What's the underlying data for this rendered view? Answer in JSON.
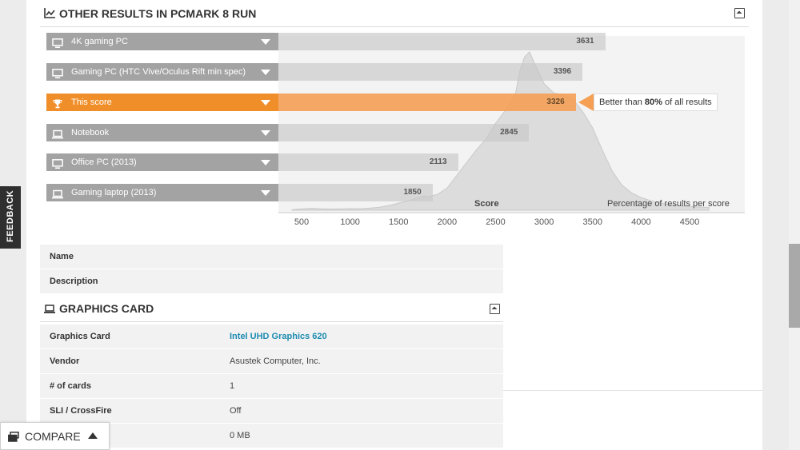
{
  "results_section": {
    "title": "OTHER RESULTS IN PCMARK 8 RUN",
    "rows": [
      {
        "label": "4K gaming PC",
        "score": "3631",
        "score_value": 3631,
        "icon": "desktop-icon",
        "highlight": false
      },
      {
        "label": "Gaming PC (HTC Vive/Oculus Rift min spec)",
        "score": "3396",
        "score_value": 3396,
        "icon": "desktop-icon",
        "highlight": false
      },
      {
        "label": "This score",
        "score": "3326",
        "score_value": 3326,
        "icon": "trophy-icon",
        "highlight": true
      },
      {
        "label": "Notebook",
        "score": "2845",
        "score_value": 2845,
        "icon": "laptop-icon",
        "highlight": false
      },
      {
        "label": "Office PC (2013)",
        "score": "2113",
        "score_value": 2113,
        "icon": "desktop-icon",
        "highlight": false
      },
      {
        "label": "Gaming laptop (2013)",
        "score": "1850",
        "score_value": 1850,
        "icon": "laptop-icon",
        "highlight": false
      }
    ],
    "callout": {
      "prefix": "Better than ",
      "percent": "80%",
      "suffix": " of all results"
    },
    "axis_title": "Score",
    "axis_note": "Percentage of results per score",
    "ticks": [
      "500",
      "1000",
      "1500",
      "2000",
      "2500",
      "3000",
      "3500",
      "4000",
      "4500"
    ]
  },
  "chart_data": {
    "type": "area",
    "title": "",
    "xlabel": "Score",
    "ylabel": "Percentage of results per score",
    "xlim": [
      400,
      4700
    ],
    "x": [
      400,
      500,
      600,
      700,
      800,
      900,
      1000,
      1100,
      1200,
      1300,
      1400,
      1500,
      1600,
      1700,
      1750,
      1800,
      1900,
      2000,
      2100,
      2200,
      2300,
      2400,
      2500,
      2600,
      2700,
      2750,
      2800,
      2850,
      2900,
      3000,
      3100,
      3200,
      3300,
      3400,
      3500,
      3600,
      3700,
      3800,
      3900,
      4000,
      4100,
      4200,
      4300,
      4400,
      4500,
      4600,
      4700
    ],
    "values": [
      0.3,
      0.8,
      1.2,
      0.9,
      0.7,
      0.8,
      1.0,
      0.9,
      1.3,
      1.8,
      3,
      4.5,
      6,
      8,
      9,
      8.5,
      10,
      14,
      22,
      30,
      38,
      45,
      55,
      63,
      72,
      88,
      97,
      100,
      93,
      80,
      74,
      73,
      70,
      62,
      52,
      38,
      25,
      16,
      11,
      8,
      6,
      4.5,
      3.5,
      2.8,
      2.3,
      2,
      1.8
    ],
    "markers": [
      {
        "name": "4K gaming PC",
        "x": 3631
      },
      {
        "name": "Gaming PC (HTC Vive/Oculus Rift min spec)",
        "x": 3396
      },
      {
        "name": "This score",
        "x": 3326
      },
      {
        "name": "Notebook",
        "x": 2845
      },
      {
        "name": "Office PC (2013)",
        "x": 2113
      },
      {
        "name": "Gaming laptop (2013)",
        "x": 1850
      }
    ],
    "grid": false,
    "fill_color": "#dcdcdc"
  },
  "info": {
    "name_label": "Name",
    "description_label": "Description"
  },
  "graphics_card_section": {
    "title": "GRAPHICS CARD",
    "rows": [
      {
        "key": "Graphics Card",
        "value": "Intel UHD Graphics 620"
      },
      {
        "key": "Vendor",
        "value": "Asustek Computer, Inc."
      },
      {
        "key": "# of cards",
        "value": "1"
      },
      {
        "key": "SLI / CrossFire",
        "value": "Off"
      },
      {
        "key": "",
        "value": "0 MB"
      }
    ]
  },
  "feedback_label": "FEEDBACK",
  "compare_label": "COMPARE",
  "colors": {
    "accent": "#f08f2a",
    "accent_light": "#f5a055",
    "link": "#1d8bb0",
    "label_bg": "#a3a3a3"
  }
}
